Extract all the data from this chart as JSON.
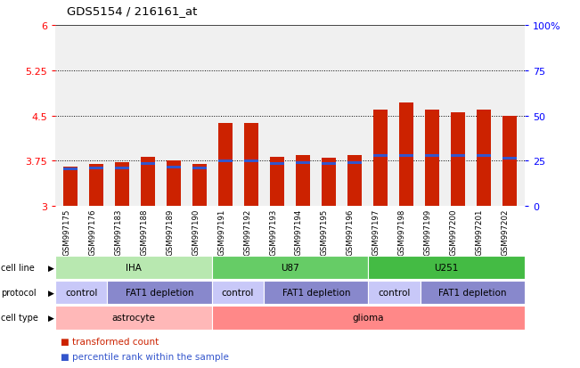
{
  "title": "GDS5154 / 216161_at",
  "samples": [
    "GSM997175",
    "GSM997176",
    "GSM997183",
    "GSM997188",
    "GSM997189",
    "GSM997190",
    "GSM997191",
    "GSM997192",
    "GSM997193",
    "GSM997194",
    "GSM997195",
    "GSM997196",
    "GSM997197",
    "GSM997198",
    "GSM997199",
    "GSM997200",
    "GSM997201",
    "GSM997202"
  ],
  "bar_values": [
    3.65,
    3.7,
    3.72,
    3.82,
    3.76,
    3.7,
    4.38,
    4.38,
    3.82,
    3.84,
    3.8,
    3.84,
    4.6,
    4.72,
    4.6,
    4.56,
    4.6,
    4.5
  ],
  "blue_marker": [
    3.62,
    3.63,
    3.63,
    3.7,
    3.65,
    3.63,
    3.75,
    3.75,
    3.71,
    3.72,
    3.7,
    3.72,
    3.84,
    3.84,
    3.84,
    3.84,
    3.84,
    3.8
  ],
  "ymin": 3.0,
  "ymax": 6.0,
  "yticks": [
    3.0,
    3.75,
    4.5,
    5.25,
    6.0
  ],
  "ytick_labels": [
    "3",
    "3.75",
    "4.5",
    "5.25",
    "6"
  ],
  "dotted_lines": [
    3.75,
    4.5,
    5.25
  ],
  "right_ytick_positions": [
    3.0,
    3.75,
    4.5,
    5.25,
    6.0
  ],
  "right_ytick_labels": [
    "0",
    "25",
    "50",
    "75",
    "100%"
  ],
  "bar_color": "#cc2200",
  "blue_color": "#3355cc",
  "plot_bg": "#f0f0f0",
  "cell_line_groups": [
    {
      "label": "IHA",
      "start": 0,
      "end": 5,
      "color": "#b8e8b0"
    },
    {
      "label": "U87",
      "start": 6,
      "end": 11,
      "color": "#66cc66"
    },
    {
      "label": "U251",
      "start": 12,
      "end": 17,
      "color": "#44bb44"
    }
  ],
  "protocol_groups": [
    {
      "label": "control",
      "start": 0,
      "end": 1,
      "color": "#c8c8f8"
    },
    {
      "label": "FAT1 depletion",
      "start": 2,
      "end": 5,
      "color": "#8888cc"
    },
    {
      "label": "control",
      "start": 6,
      "end": 7,
      "color": "#c8c8f8"
    },
    {
      "label": "FAT1 depletion",
      "start": 8,
      "end": 11,
      "color": "#8888cc"
    },
    {
      "label": "control",
      "start": 12,
      "end": 13,
      "color": "#c8c8f8"
    },
    {
      "label": "FAT1 depletion",
      "start": 14,
      "end": 17,
      "color": "#8888cc"
    }
  ],
  "cell_type_groups": [
    {
      "label": "astrocyte",
      "start": 0,
      "end": 5,
      "color": "#ffb8b8"
    },
    {
      "label": "glioma",
      "start": 6,
      "end": 17,
      "color": "#ff8888"
    }
  ],
  "row_labels": [
    "cell line",
    "protocol",
    "cell type"
  ],
  "legend_items": [
    {
      "label": "transformed count",
      "color": "#cc2200"
    },
    {
      "label": "percentile rank within the sample",
      "color": "#3355cc"
    }
  ]
}
